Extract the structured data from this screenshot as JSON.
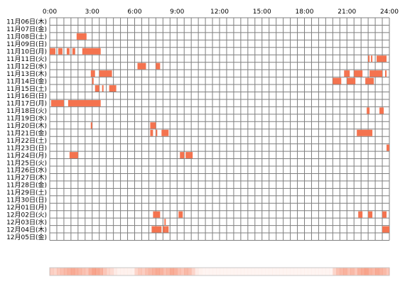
{
  "chart_data": {
    "type": "heatmap",
    "title": "",
    "xlabel": "",
    "ylabel": "",
    "x_ticks": [
      "0:00",
      "3:00",
      "6:00",
      "9:00",
      "12:00",
      "15:00",
      "18:00",
      "21:00",
      "24:00"
    ],
    "x_unit": "hours",
    "xlim": [
      0,
      24
    ],
    "grid": true,
    "bar_color": "#f4734f",
    "grid_color": "#7f7f7f",
    "rows": [
      {
        "date": "11月06日(木)",
        "activity": []
      },
      {
        "date": "11月07日(金)",
        "activity": []
      },
      {
        "date": "11月08日(土)",
        "activity": [
          [
            1.9,
            2.6
          ]
        ]
      },
      {
        "date": "11月09日(日)",
        "activity": []
      },
      {
        "date": "11月10日(月)",
        "activity": [
          [
            0.0,
            0.4
          ],
          [
            0.6,
            0.9
          ],
          [
            1.2,
            1.4
          ],
          [
            1.6,
            1.8
          ],
          [
            2.3,
            3.6
          ]
        ]
      },
      {
        "date": "11月11日(火)",
        "activity": [
          [
            22.5,
            22.6
          ],
          [
            22.7,
            22.8
          ],
          [
            23.1,
            23.8
          ]
        ]
      },
      {
        "date": "11月12日(水)",
        "activity": [
          [
            6.2,
            6.8
          ],
          [
            7.5,
            7.8
          ]
        ]
      },
      {
        "date": "11月13日(木)",
        "activity": [
          [
            2.9,
            3.2
          ],
          [
            3.5,
            4.4
          ],
          [
            20.8,
            21.2
          ],
          [
            21.5,
            22.1
          ],
          [
            22.6,
            23.5
          ],
          [
            23.7,
            23.8
          ]
        ]
      },
      {
        "date": "11月14日(金)",
        "activity": [
          [
            3.0,
            3.1
          ],
          [
            20.0,
            20.6
          ],
          [
            21.0,
            21.6
          ],
          [
            22.3,
            22.9
          ]
        ]
      },
      {
        "date": "11月15日(土)",
        "activity": [
          [
            3.2,
            3.5
          ],
          [
            3.7,
            3.8
          ],
          [
            4.2,
            4.7
          ]
        ]
      },
      {
        "date": "11月16日(日)",
        "activity": []
      },
      {
        "date": "11月17日(月)",
        "activity": [
          [
            0.1,
            1.0
          ],
          [
            1.3,
            3.6
          ]
        ]
      },
      {
        "date": "11月18日(火)",
        "activity": [
          [
            22.4,
            22.6
          ],
          [
            23.3,
            23.6
          ]
        ]
      },
      {
        "date": "11月19日(水)",
        "activity": []
      },
      {
        "date": "11月20日(木)",
        "activity": [
          [
            2.9,
            3.0
          ],
          [
            7.1,
            7.5
          ]
        ]
      },
      {
        "date": "11月21日(金)",
        "activity": [
          [
            7.1,
            7.3
          ],
          [
            7.5,
            7.6
          ],
          [
            7.9,
            8.4
          ],
          [
            21.7,
            22.8
          ]
        ]
      },
      {
        "date": "11月22日(土)",
        "activity": []
      },
      {
        "date": "11月23日(日)",
        "activity": [
          [
            23.8,
            24.0
          ]
        ]
      },
      {
        "date": "11月24日(月)",
        "activity": [
          [
            1.4,
            2.0
          ],
          [
            9.2,
            9.5
          ],
          [
            9.6,
            10.1
          ]
        ]
      },
      {
        "date": "11月25日(火)",
        "activity": []
      },
      {
        "date": "11月26日(水)",
        "activity": []
      },
      {
        "date": "11月27日(木)",
        "activity": []
      },
      {
        "date": "11月28日(金)",
        "activity": []
      },
      {
        "date": "11月29日(土)",
        "activity": []
      },
      {
        "date": "11月30日(日)",
        "activity": []
      },
      {
        "date": "12月01日(月)",
        "activity": []
      },
      {
        "date": "12月02日(火)",
        "activity": [
          [
            7.3,
            7.8
          ],
          [
            9.1,
            9.4
          ],
          [
            21.8,
            22.1
          ],
          [
            22.5,
            22.8
          ],
          [
            23.5,
            23.8
          ]
        ]
      },
      {
        "date": "12月03日(水)",
        "activity": [
          [
            8.1,
            8.2
          ]
        ]
      },
      {
        "date": "12月04日(木)",
        "activity": [
          [
            7.2,
            7.9
          ],
          [
            8.0,
            8.2
          ],
          [
            8.2,
            8.4
          ],
          [
            23.5,
            24.0
          ]
        ]
      },
      {
        "date": "12月05日(金)",
        "activity": []
      }
    ],
    "summary_strip": [
      0.35,
      0.3,
      0.4,
      0.45,
      0.5,
      0.55,
      0.6,
      0.55,
      0.5,
      0.45,
      0.4,
      0.55,
      0.65,
      0.6,
      0.55,
      0.4,
      0.3,
      0.25,
      0.15,
      0.1,
      0.1,
      0.1,
      0.1,
      0.1,
      0.3,
      0.4,
      0.35,
      0.45,
      0.5,
      0.55,
      0.6,
      0.55,
      0.45,
      0.5,
      0.6,
      0.55,
      0.45,
      0.4,
      0.5,
      0.45,
      0.3,
      0.15,
      0.1,
      0.08,
      0.08,
      0.08,
      0.08,
      0.08,
      0.08,
      0.08,
      0.08,
      0.08,
      0.08,
      0.08,
      0.08,
      0.08,
      0.08,
      0.08,
      0.08,
      0.08,
      0.08,
      0.08,
      0.08,
      0.08,
      0.08,
      0.08,
      0.08,
      0.08,
      0.08,
      0.08,
      0.08,
      0.08,
      0.08,
      0.08,
      0.08,
      0.08,
      0.08,
      0.08,
      0.08,
      0.08,
      0.3,
      0.45,
      0.5,
      0.55,
      0.45,
      0.5,
      0.4,
      0.55,
      0.6,
      0.65,
      0.55,
      0.5,
      0.6,
      0.55,
      0.5,
      0.4
    ]
  }
}
